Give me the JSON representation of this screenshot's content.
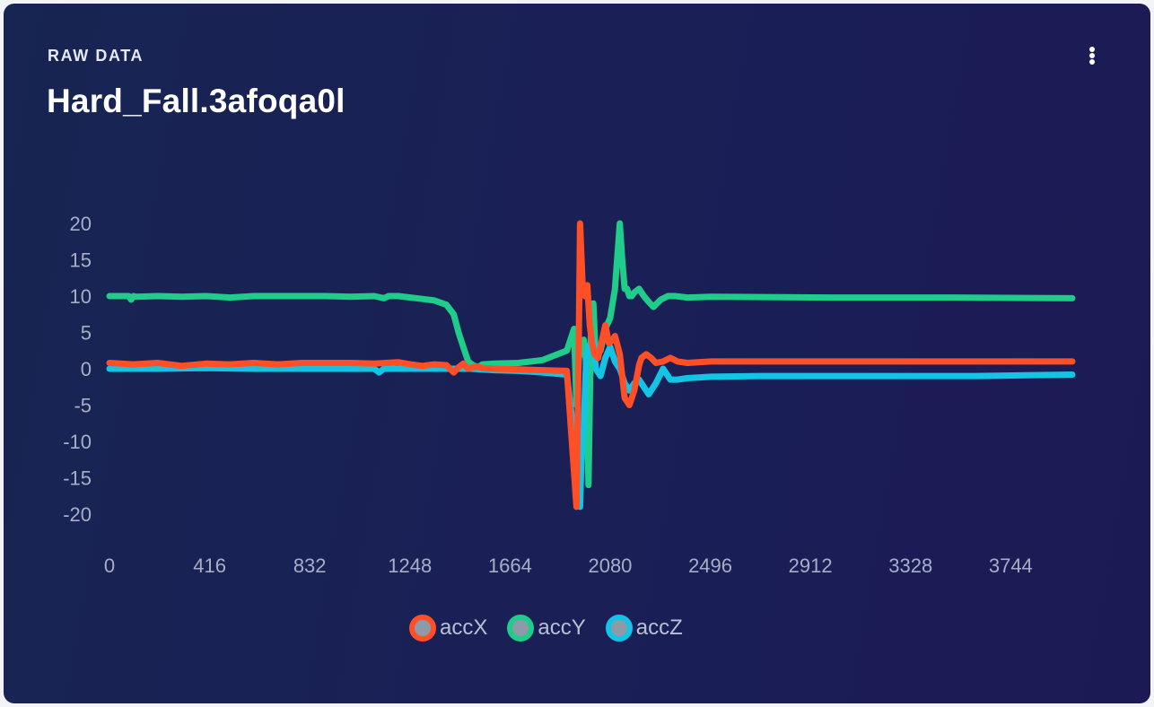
{
  "card": {
    "eyebrow": "RAW DATA",
    "title": "Hard_Fall.3afoqa0l",
    "menu_icon": "more-vertical-icon"
  },
  "chart_data": {
    "type": "line",
    "title": "",
    "xlabel": "",
    "ylabel": "",
    "xlim": [
      0,
      4000
    ],
    "ylim": [
      -20,
      20
    ],
    "x_ticks": [
      "0",
      "416",
      "832",
      "1248",
      "1664",
      "2080",
      "2496",
      "2912",
      "3328",
      "3744"
    ],
    "y_ticks": [
      "20",
      "15",
      "10",
      "5",
      "0",
      "-5",
      "-10",
      "-15",
      "-20"
    ],
    "grid": false,
    "legend_position": "bottom",
    "series": [
      {
        "name": "accY",
        "color": "#1fcc8a",
        "x": [
          0,
          80,
          90,
          100,
          110,
          200,
          300,
          400,
          500,
          600,
          700,
          800,
          900,
          1000,
          1100,
          1140,
          1160,
          1200,
          1250,
          1300,
          1350,
          1400,
          1430,
          1450,
          1470,
          1490,
          1510,
          1530,
          1550,
          1600,
          1700,
          1800,
          1900,
          1930,
          1940,
          1950,
          1960,
          1970,
          1980,
          1990,
          2000,
          2010,
          2020,
          2030,
          2040,
          2050,
          2060,
          2080,
          2100,
          2120,
          2130,
          2140,
          2150,
          2160,
          2170,
          2180,
          2200,
          2220,
          2240,
          2260,
          2290,
          2320,
          2350,
          2400,
          2500,
          3000,
          3500,
          4000
        ],
        "y": [
          10,
          10,
          9.5,
          10,
          9.9,
          10,
          9.9,
          10,
          9.8,
          10,
          10,
          10,
          10,
          9.9,
          10,
          9.7,
          10,
          10,
          9.8,
          9.6,
          9.4,
          8.8,
          7.5,
          5,
          3,
          1,
          0.5,
          0.2,
          0.6,
          0.7,
          0.8,
          1.2,
          2.5,
          5.5,
          -5,
          1.5,
          3,
          4,
          1,
          -16,
          5,
          9,
          1.5,
          3,
          2.5,
          4,
          5.5,
          7,
          11,
          20,
          15,
          11,
          11,
          10,
          10,
          10.5,
          11,
          10,
          9.2,
          8.5,
          9.5,
          10,
          10,
          9.8,
          9.9,
          9.8,
          9.8,
          9.7
        ]
      },
      {
        "name": "accZ",
        "color": "#14c4e5",
        "x": [
          0,
          100,
          200,
          400,
          600,
          800,
          1000,
          1100,
          1120,
          1140,
          1200,
          1300,
          1400,
          1450,
          1500,
          1600,
          1700,
          1800,
          1900,
          1940,
          1950,
          1955,
          1960,
          1970,
          1980,
          1990,
          2010,
          2020,
          2040,
          2060,
          2080,
          2100,
          2120,
          2140,
          2160,
          2180,
          2200,
          2220,
          2240,
          2270,
          2300,
          2330,
          2360,
          2400,
          2500,
          2700,
          3000,
          3300,
          3600,
          4000
        ],
        "y": [
          0,
          0,
          0,
          0.1,
          0,
          0,
          0,
          0,
          -0.5,
          0,
          0,
          0,
          0,
          0,
          0,
          -0.2,
          -0.3,
          -0.5,
          -0.8,
          -12,
          -18,
          -19,
          -13,
          -8,
          1,
          3,
          4,
          0,
          -1,
          1.5,
          3,
          1,
          0,
          -2,
          -3,
          -2,
          -1.5,
          -2.5,
          -3.5,
          -2,
          0,
          -1.5,
          -1.5,
          -1.3,
          -1.1,
          -1,
          -1,
          -1,
          -1,
          -0.8
        ]
      },
      {
        "name": "accX",
        "color": "#ff4f26",
        "x": [
          0,
          100,
          200,
          300,
          400,
          500,
          600,
          700,
          800,
          900,
          1000,
          1100,
          1200,
          1250,
          1300,
          1350,
          1400,
          1430,
          1450,
          1470,
          1490,
          1510,
          1530,
          1550,
          1600,
          1700,
          1800,
          1900,
          1940,
          1950,
          1955,
          1965,
          1975,
          1985,
          1995,
          2005,
          2015,
          2030,
          2040,
          2060,
          2075,
          2090,
          2100,
          2120,
          2140,
          2160,
          2180,
          2200,
          2210,
          2230,
          2250,
          2270,
          2300,
          2330,
          2360,
          2400,
          2500,
          2700,
          3000,
          3300,
          3600,
          4000
        ],
        "y": [
          0.8,
          0.6,
          0.8,
          0.4,
          0.7,
          0.6,
          0.8,
          0.6,
          0.8,
          0.8,
          0.8,
          0.7,
          0.9,
          0.6,
          0.4,
          0.6,
          0.5,
          -0.5,
          0.2,
          0.7,
          0,
          0.2,
          0.3,
          0.1,
          0,
          -0.1,
          -0.2,
          -0.3,
          -19,
          5,
          20,
          12,
          10,
          11.5,
          6,
          3.5,
          2,
          1.5,
          3,
          6,
          3.5,
          4,
          4.5,
          2,
          -4,
          -5,
          -3,
          0.5,
          1.5,
          2,
          1.5,
          0.8,
          1,
          1.5,
          1,
          0.8,
          1,
          1,
          1,
          1,
          1,
          1
        ]
      }
    ]
  },
  "legend": [
    {
      "name": "accX",
      "color": "#ff4f26"
    },
    {
      "name": "accY",
      "color": "#1fcc8a"
    },
    {
      "name": "accZ",
      "color": "#14c4e5"
    }
  ]
}
